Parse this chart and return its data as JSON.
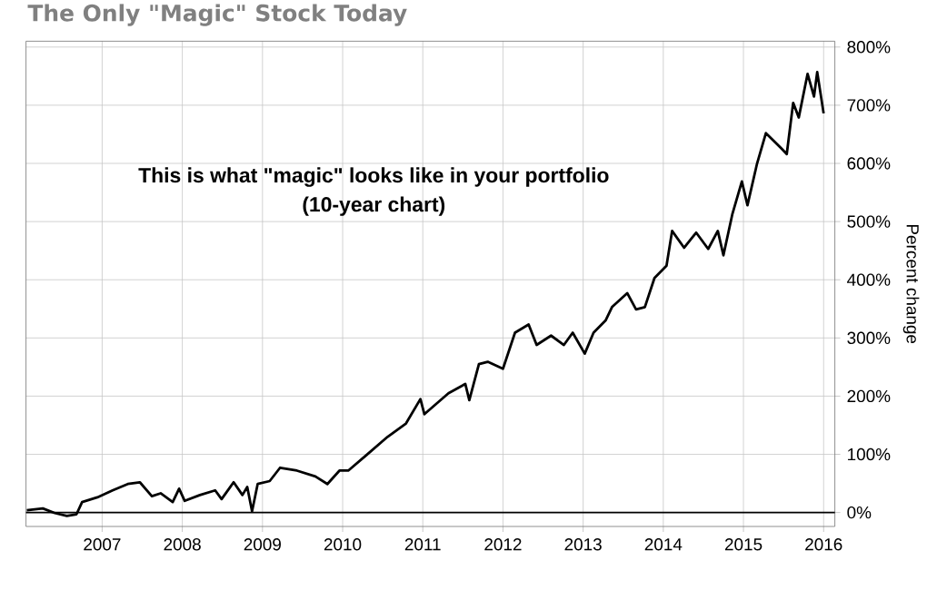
{
  "chart_data": {
    "type": "line",
    "title": "The Only \"Magic\" Stock Today",
    "ylabel": "Percent change",
    "annotations": [
      "This is what \"magic\" looks like in your portfolio",
      "(10-year chart)"
    ],
    "series": [
      {
        "color": "#000000",
        "x": [
          2006.06,
          2006.26,
          2006.41,
          2006.56,
          2006.68,
          2006.75,
          2006.94,
          2007.13,
          2007.32,
          2007.47,
          2007.62,
          2007.73,
          2007.88,
          2007.96,
          2008.03,
          2008.22,
          2008.41,
          2008.49,
          2008.64,
          2008.75,
          2008.81,
          2008.87,
          2008.94,
          2009.09,
          2009.22,
          2009.43,
          2009.66,
          2009.81,
          2009.96,
          2010.07,
          2010.3,
          2010.56,
          2010.79,
          2010.97,
          2011.02,
          2011.32,
          2011.53,
          2011.58,
          2011.7,
          2011.81,
          2012.0,
          2012.15,
          2012.32,
          2012.42,
          2012.6,
          2012.76,
          2012.87,
          2013.02,
          2013.13,
          2013.28,
          2013.36,
          2013.55,
          2013.66,
          2013.77,
          2013.89,
          2014.04,
          2014.11,
          2014.26,
          2014.41,
          2014.56,
          2014.68,
          2014.75,
          2014.86,
          2014.98,
          2015.05,
          2015.17,
          2015.28,
          2015.47,
          2015.54,
          2015.62,
          2015.69,
          2015.8,
          2015.88,
          2015.92,
          2016.0
        ],
        "values": [
          4,
          7,
          -1,
          -6,
          -3,
          18,
          26,
          38,
          49,
          52,
          28,
          33,
          18,
          41,
          20,
          30,
          38,
          23,
          52,
          30,
          44,
          2,
          49,
          54,
          77,
          72,
          62,
          49,
          72,
          72,
          99,
          130,
          153,
          195,
          169,
          205,
          221,
          193,
          255,
          259,
          247,
          309,
          323,
          288,
          304,
          288,
          309,
          273,
          309,
          330,
          353,
          377,
          349,
          353,
          403,
          424,
          484,
          455,
          481,
          453,
          484,
          442,
          512,
          569,
          528,
          600,
          652,
          626,
          616,
          704,
          679,
          754,
          715,
          757,
          686
        ]
      }
    ],
    "xlim": [
      2006.05,
      2016.14
    ],
    "ylim": [
      -24,
      810
    ],
    "xticks": [
      2007,
      2008,
      2009,
      2010,
      2011,
      2012,
      2013,
      2014,
      2015,
      2016
    ],
    "yticks": [
      {
        "value": 0,
        "label": "0%"
      },
      {
        "value": 100,
        "label": "100%"
      },
      {
        "value": 200,
        "label": "200%"
      },
      {
        "value": 300,
        "label": "300%"
      },
      {
        "value": 400,
        "label": "400%"
      },
      {
        "value": 500,
        "label": "500%"
      },
      {
        "value": 600,
        "label": "600%"
      },
      {
        "value": 700,
        "label": "700%"
      },
      {
        "value": 800,
        "label": "800%"
      }
    ],
    "grid": true,
    "ref_lines": [
      {
        "axis": "y",
        "value": 0,
        "color": "#000000"
      }
    ]
  }
}
